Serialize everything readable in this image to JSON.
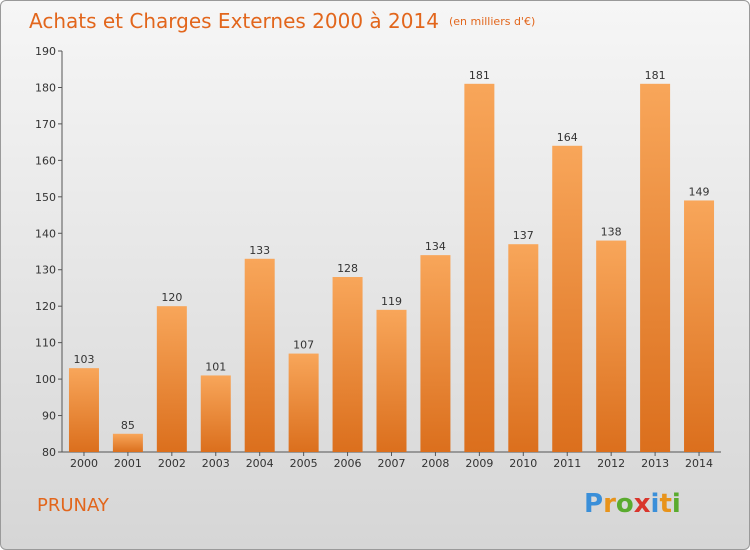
{
  "header": {
    "title": "Achats et Charges Externes 2000 à 2014",
    "unit": "(en milliers d'€)"
  },
  "footer": {
    "commune": "PRUNAY",
    "logo": {
      "letters": [
        "P",
        "r",
        "o",
        "x",
        "i",
        "t",
        "i"
      ],
      "colors": [
        "#3a8fd9",
        "#e8931a",
        "#5aab2e",
        "#d9352c",
        "#3a8fd9",
        "#e8931a",
        "#5aab2e"
      ]
    }
  },
  "chart_data": {
    "type": "bar",
    "title": "Achats et Charges Externes 2000 à 2014",
    "categories": [
      "2000",
      "2001",
      "2002",
      "2003",
      "2004",
      "2005",
      "2006",
      "2007",
      "2008",
      "2009",
      "2010",
      "2011",
      "2012",
      "2013",
      "2014"
    ],
    "values": [
      103,
      85,
      120,
      101,
      133,
      107,
      128,
      119,
      134,
      181,
      137,
      164,
      138,
      181,
      149
    ],
    "ylim": [
      80,
      190
    ],
    "yticks": [
      80,
      90,
      100,
      110,
      120,
      130,
      140,
      150,
      160,
      170,
      180,
      190
    ],
    "grid": false,
    "bar_color": "#f0892e"
  }
}
